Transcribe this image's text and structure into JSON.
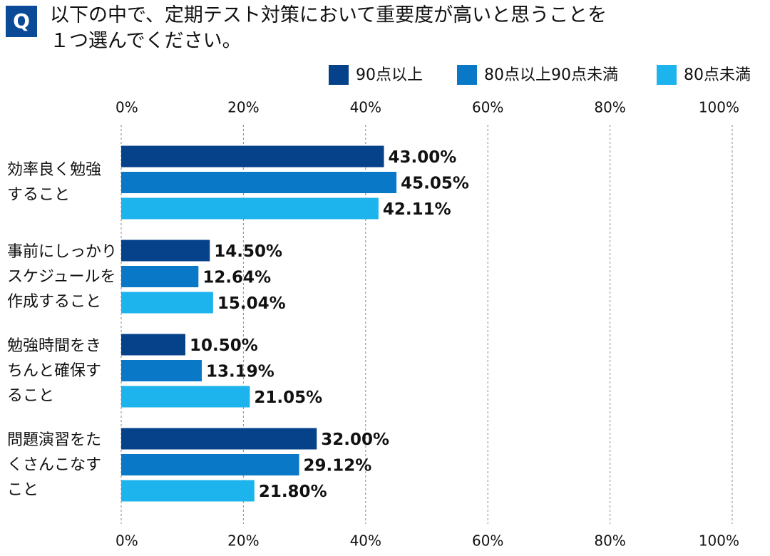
{
  "chart_data": {
    "type": "bar",
    "orientation": "horizontal",
    "question_mark": "Q",
    "title": "以下の中で、定期テスト対策において重要度が高いと思うことを\n１つ選んでください。",
    "categories": [
      "効率良く勉強\nすること",
      "事前にしっかり\nスケジュールを\n作成すること",
      "勉強時間をき\nちんと確保す\nること",
      "問題演習をた\nくさんこなす\nこと"
    ],
    "series": [
      {
        "name": "90点以上",
        "color": "#06428a",
        "values": [
          43.0,
          14.5,
          10.5,
          32.0
        ],
        "value_labels": [
          "43.00%",
          "14.50%",
          "10.50%",
          "32.00%"
        ]
      },
      {
        "name": "80点以上90点未満",
        "color": "#0878c7",
        "values": [
          45.05,
          12.64,
          13.19,
          29.12
        ],
        "value_labels": [
          "45.05%",
          "12.64%",
          "13.19%",
          "29.12%"
        ]
      },
      {
        "name": "80点未満",
        "color": "#1db3ec",
        "values": [
          42.11,
          15.04,
          21.05,
          21.8
        ],
        "value_labels": [
          "42.11%",
          "15.04%",
          "21.05%",
          "21.80%"
        ]
      }
    ],
    "xlim": [
      0,
      100
    ],
    "xticks": [
      {
        "value": 0,
        "label": "0%"
      },
      {
        "value": 20,
        "label": "20%"
      },
      {
        "value": 40,
        "label": "40%"
      },
      {
        "value": 60,
        "label": "60%"
      },
      {
        "value": 80,
        "label": "80%"
      },
      {
        "value": 100,
        "label": "100%"
      }
    ],
    "grid": true,
    "legend": "top-right"
  }
}
